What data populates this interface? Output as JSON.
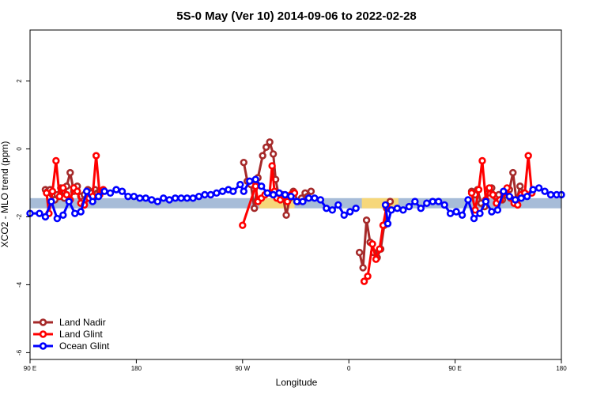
{
  "chart_data": {
    "type": "line",
    "title": "5S-0 May (Ver 10)   2014-09-06 to 2022-02-28",
    "xlabel": "Longitude",
    "ylabel": "XCO2 - MLO trend (ppm)",
    "xlim": [
      0,
      450
    ],
    "ylim": [
      -6.2,
      3.5
    ],
    "x_ticks": [
      {
        "value": 0,
        "label": "90 E"
      },
      {
        "value": 90,
        "label": "180"
      },
      {
        "value": 180,
        "label": "90 W"
      },
      {
        "value": 270,
        "label": "0"
      },
      {
        "value": 360,
        "label": "90 E"
      },
      {
        "value": 450,
        "label": "180"
      }
    ],
    "y_ticks": [
      {
        "value": 2,
        "label": "2"
      },
      {
        "value": 0,
        "label": "0"
      },
      {
        "value": -2,
        "label": "-2"
      },
      {
        "value": -4,
        "label": "-4"
      },
      {
        "value": -6,
        "label": "-6"
      }
    ],
    "grid": false,
    "legend_position": "bottom-left",
    "band": {
      "y_range": [
        -1.75,
        -1.45
      ],
      "color": "#a7bcd8",
      "land_color": "#f6d77a",
      "land_segments": [
        [
          194,
          224
        ],
        [
          281,
          312
        ]
      ]
    },
    "series": [
      {
        "name": "Land Nadir",
        "color": "#a52a2a",
        "x": [
          13,
          15,
          17,
          19,
          21,
          23,
          26,
          29,
          31,
          34,
          37,
          40,
          43,
          46,
          49,
          52,
          55,
          57,
          59
        ],
        "y": [
          -1.2,
          -1.25,
          -1.2,
          -1.35,
          -1.5,
          -1.35,
          -1.15,
          -1.45,
          -1.1,
          -0.7,
          -1.25,
          -1.1,
          -1.4,
          -1.35,
          -1.2,
          -1.3,
          -1.2,
          -1.3,
          -1.25
        ],
        "segments": [
          {
            "x": [
              181,
              184,
              187,
              190,
              193,
              197,
              200,
              203,
              206,
              208,
              211,
              214,
              217,
              220,
              223,
              227,
              230,
              233,
              235,
              238
            ],
            "y": [
              -0.4,
              -0.95,
              -1.05,
              -1.75,
              -0.85,
              -0.2,
              0.05,
              0.2,
              -0.15,
              -0.9,
              -1.45,
              -1.35,
              -1.95,
              -1.45,
              -1.25,
              -1.55,
              -1.45,
              -1.3,
              -1.4,
              -1.25
            ]
          },
          {
            "x": [
              279,
              282,
              285,
              288,
              291,
              294,
              297,
              300,
              302,
              305
            ],
            "y": [
              -3.05,
              -3.5,
              -2.1,
              -2.75,
              -3.05,
              -3.2,
              -2.95,
              -2.25,
              -1.75,
              -1.55
            ]
          },
          {
            "x": [
              374,
              377,
              379,
              382,
              385,
              388,
              391,
              394,
              397,
              400,
              403,
              406,
              409,
              412,
              415,
              418
            ],
            "y": [
              -1.25,
              -1.35,
              -1.2,
              -1.6,
              -1.7,
              -1.3,
              -1.15,
              -1.4,
              -1.35,
              -1.5,
              -1.35,
              -1.2,
              -0.7,
              -1.55,
              -1.1,
              -1.3
            ]
          }
        ]
      },
      {
        "name": "Land Glint",
        "color": "#ff0000",
        "x": [
          14,
          16,
          19,
          22,
          25,
          28,
          31,
          34,
          37,
          40,
          43,
          46,
          50,
          53,
          56,
          59,
          62
        ],
        "y": [
          -1.3,
          -1.9,
          -1.25,
          -0.35,
          -1.4,
          -1.15,
          -1.35,
          -1.5,
          -1.15,
          -1.25,
          -1.6,
          -1.65,
          -1.45,
          -1.4,
          -0.2,
          -1.35,
          -1.2
        ],
        "segments": [
          {
            "x": [
              180,
              191,
              193,
              196,
              199,
              203,
              205,
              207,
              209,
              212,
              215,
              218,
              221,
              224
            ],
            "y": [
              -2.25,
              -1.1,
              -1.55,
              -1.45,
              -1.35,
              -1.3,
              -0.5,
              -1.25,
              -1.45,
              -1.5,
              -1.4,
              -1.55,
              -1.35,
              -1.3
            ]
          },
          {
            "x": [
              283,
              286,
              290,
              293,
              296,
              299,
              302
            ],
            "y": [
              -3.9,
              -3.75,
              -2.8,
              -3.25,
              -2.95,
              -2.25,
              -1.7
            ]
          },
          {
            "x": [
              374,
              377,
              380,
              383,
              386,
              389,
              392,
              395,
              398,
              401,
              404,
              407,
              410,
              413,
              416,
              419,
              422,
              425
            ],
            "y": [
              -1.3,
              -1.8,
              -1.2,
              -0.35,
              -1.5,
              -1.15,
              -1.35,
              -1.6,
              -1.5,
              -1.3,
              -1.15,
              -1.45,
              -1.6,
              -1.65,
              -1.35,
              -1.3,
              -0.2,
              -1.3
            ]
          }
        ]
      },
      {
        "name": "Ocean Glint",
        "color": "#0000ff",
        "segments": [
          {
            "x": [
              0,
              8,
              13,
              18,
              23,
              28,
              33,
              38,
              43,
              48,
              53,
              58,
              63,
              68,
              73,
              78,
              83,
              88,
              93,
              98,
              103,
              108,
              113,
              118,
              123,
              128,
              133,
              138,
              143,
              148,
              153,
              158,
              163,
              168,
              172,
              178,
              181,
              186,
              191,
              196,
              201,
              206,
              211,
              216,
              221,
              226,
              231,
              236,
              241,
              246,
              251,
              256,
              261,
              266,
              271,
              276
            ],
            "y": [
              -1.9,
              -1.9,
              -2.0,
              -1.55,
              -2.05,
              -1.95,
              -1.55,
              -1.9,
              -1.85,
              -1.25,
              -1.55,
              -1.4,
              -1.25,
              -1.3,
              -1.2,
              -1.25,
              -1.4,
              -1.4,
              -1.45,
              -1.45,
              -1.5,
              -1.55,
              -1.45,
              -1.5,
              -1.45,
              -1.45,
              -1.45,
              -1.45,
              -1.4,
              -1.35,
              -1.35,
              -1.3,
              -1.25,
              -1.2,
              -1.25,
              -1.05,
              -1.25,
              -0.95,
              -0.9,
              -1.1,
              -1.3,
              -1.35,
              -1.3,
              -1.35,
              -1.4,
              -1.55,
              -1.55,
              -1.45,
              -1.45,
              -1.5,
              -1.75,
              -1.8,
              -1.65,
              -1.95,
              -1.85,
              -1.75
            ]
          },
          {
            "x": [
              301,
              303,
              306,
              311,
              316,
              321,
              326,
              331,
              336,
              341,
              346,
              351,
              356,
              361,
              366,
              371,
              376,
              381,
              386,
              391,
              396,
              401,
              406,
              411,
              416,
              421,
              426,
              431,
              436,
              441,
              446,
              450
            ],
            "y": [
              -1.65,
              -2.2,
              -1.8,
              -1.75,
              -1.8,
              -1.7,
              -1.55,
              -1.75,
              -1.6,
              -1.55,
              -1.55,
              -1.65,
              -1.9,
              -1.85,
              -1.95,
              -1.5,
              -2.05,
              -1.9,
              -1.55,
              -1.85,
              -1.8,
              -1.25,
              -1.4,
              -1.5,
              -1.45,
              -1.4,
              -1.2,
              -1.15,
              -1.25,
              -1.35,
              -1.35,
              -1.35
            ]
          }
        ],
        "x": [],
        "y": []
      }
    ]
  }
}
